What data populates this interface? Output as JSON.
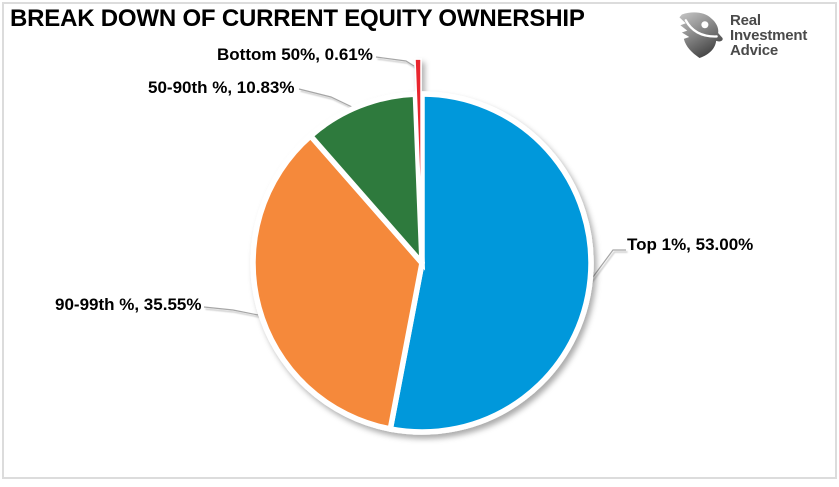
{
  "title": "BREAK DOWN OF CURRENT EQUITY OWNERSHIP",
  "logo": {
    "name": "Real Investment Advice",
    "lines": [
      "Real",
      "Investment",
      "Advice"
    ],
    "icon": "eagle-shield-icon",
    "text_color": "#4a4a4a"
  },
  "chart_data": {
    "type": "pie",
    "title": "BREAK DOWN OF CURRENT EQUITY OWNERSHIP",
    "direction": "clockwise",
    "start_angle_deg": 0,
    "legend_position": "none",
    "labels_style": "outside callouts with leader lines, format: category, percent",
    "slices": [
      {
        "label": "Top 1%",
        "value_pct": 53.0,
        "display": "Top 1%, 53.00%",
        "color": "#0098DB",
        "exploded": false
      },
      {
        "label": "90-99th %",
        "value_pct": 35.55,
        "display": "90-99th %, 35.55%",
        "color": "#F5893B",
        "exploded": false
      },
      {
        "label": "50-90th %",
        "value_pct": 10.83,
        "display": "50-90th %, 10.83%",
        "color": "#2E7A3C",
        "exploded": false
      },
      {
        "label": "Bottom 50%",
        "value_pct": 0.61,
        "display": "Bottom 50%, 0.61%",
        "color": "#E9282E",
        "exploded": true
      }
    ],
    "colors": {
      "frame_border": "#DCDCDC",
      "leader_line": "#A6A6A6",
      "label_text": "#000000",
      "slice_gap": "#FFFFFF"
    }
  }
}
